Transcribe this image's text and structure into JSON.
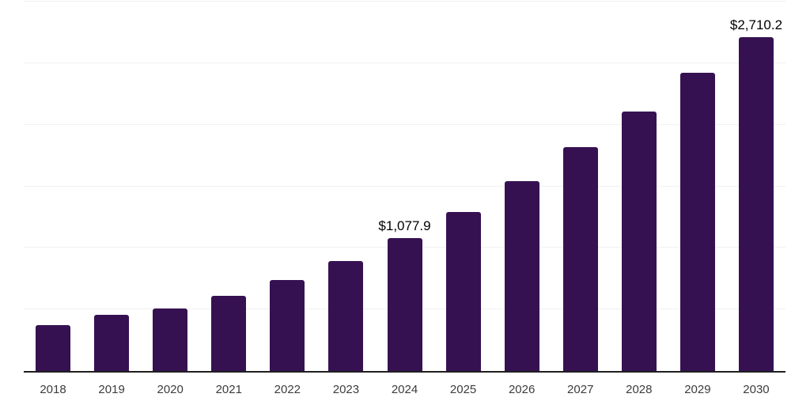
{
  "chart_data": {
    "type": "bar",
    "title": "",
    "xlabel": "",
    "ylabel": "",
    "categories": [
      "2018",
      "2019",
      "2020",
      "2021",
      "2022",
      "2023",
      "2024",
      "2025",
      "2026",
      "2027",
      "2028",
      "2029",
      "2030"
    ],
    "values": [
      375,
      455,
      510,
      610,
      740,
      890,
      1077.9,
      1290,
      1540,
      1815,
      2110,
      2425,
      2710.2
    ],
    "data_labels": [
      "",
      "",
      "",
      "",
      "",
      "",
      "$1,077.9",
      "",
      "",
      "",
      "",
      "",
      "$2,710.2"
    ],
    "ylim": [
      0,
      3000
    ],
    "gridline_step": 500,
    "grid": "horizontal",
    "legend": "none",
    "colors": {
      "bar": "#361152",
      "axis_line": "#1f1f1f",
      "gridline": "#f1f1f1",
      "value_label": "#000000",
      "tick_label": "#3c3c3c",
      "background": "#ffffff"
    }
  }
}
